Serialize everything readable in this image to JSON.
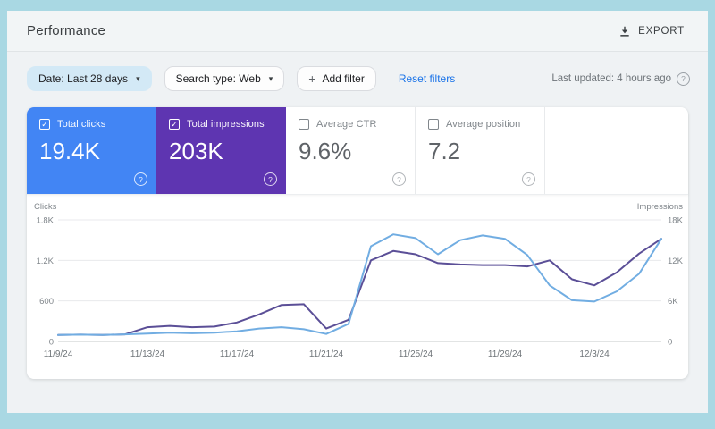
{
  "header": {
    "title": "Performance",
    "export_label": "EXPORT"
  },
  "filters": {
    "date_chip": "Date: Last 28 days",
    "search_type_chip": "Search type: Web",
    "add_filter_label": "Add filter",
    "reset_label": "Reset filters",
    "last_updated": "Last updated: 4 hours ago"
  },
  "icons": {
    "caret": "▾",
    "plus": "+",
    "check": "✓",
    "help": "?",
    "export": "download-icon"
  },
  "metrics": [
    {
      "label": "Total clicks",
      "value": "19.4K",
      "selected": true,
      "color": "#4285f4"
    },
    {
      "label": "Total impressions",
      "value": "203K",
      "selected": true,
      "color": "#5e35b1"
    },
    {
      "label": "Average CTR",
      "value": "9.6%",
      "selected": false,
      "color": "#ffffff"
    },
    {
      "label": "Average position",
      "value": "7.2",
      "selected": false,
      "color": "#ffffff"
    }
  ],
  "chart_data": {
    "type": "line",
    "x": [
      "11/9/24",
      "11/10/24",
      "11/11/24",
      "11/12/24",
      "11/13/24",
      "11/14/24",
      "11/15/24",
      "11/16/24",
      "11/17/24",
      "11/18/24",
      "11/19/24",
      "11/20/24",
      "11/21/24",
      "11/22/24",
      "11/23/24",
      "11/24/24",
      "11/25/24",
      "11/26/24",
      "11/27/24",
      "11/28/24",
      "11/29/24",
      "11/30/24",
      "12/1/24",
      "12/2/24",
      "12/3/24",
      "12/4/24",
      "12/5/24",
      "12/6/24"
    ],
    "series": [
      {
        "name": "Clicks",
        "axis": "left",
        "color": "#71ade2",
        "values": [
          95,
          100,
          95,
          105,
          115,
          130,
          120,
          130,
          150,
          190,
          210,
          180,
          110,
          260,
          1410,
          1585,
          1530,
          1290,
          1500,
          1570,
          1520,
          1280,
          830,
          610,
          590,
          740,
          1000,
          1520
        ]
      },
      {
        "name": "Impressions",
        "axis": "right",
        "color": "#5b4f97",
        "values": [
          950,
          1000,
          950,
          1050,
          2100,
          2300,
          2100,
          2200,
          2800,
          4000,
          5400,
          5500,
          1900,
          3200,
          12000,
          13400,
          12900,
          11600,
          11400,
          11300,
          11300,
          11100,
          12000,
          9200,
          8300,
          10200,
          13000,
          15200
        ]
      }
    ],
    "left_axis": {
      "label": "Clicks",
      "ticks": [
        "1.8K",
        "1.2K",
        "600",
        "0"
      ],
      "max": 1800,
      "min": 0
    },
    "right_axis": {
      "label": "Impressions",
      "ticks": [
        "18K",
        "12K",
        "6K",
        "0"
      ],
      "max": 18000,
      "min": 0
    },
    "x_tick_labels": [
      "11/9/24",
      "11/13/24",
      "11/17/24",
      "11/21/24",
      "11/25/24",
      "11/29/24",
      "12/3/24"
    ],
    "x_tick_indices": [
      0,
      4,
      8,
      12,
      16,
      20,
      24
    ],
    "grid": true,
    "legend_position": "none"
  },
  "colors": {
    "clicks_blue": "#4285f4",
    "impressions_purple": "#5e35b1",
    "line_clicks": "#71ade2",
    "line_impressions": "#5b4f97",
    "link_blue": "#1a73e8",
    "frame_teal": "#a9d8e3",
    "grid": "#e8eaec"
  }
}
